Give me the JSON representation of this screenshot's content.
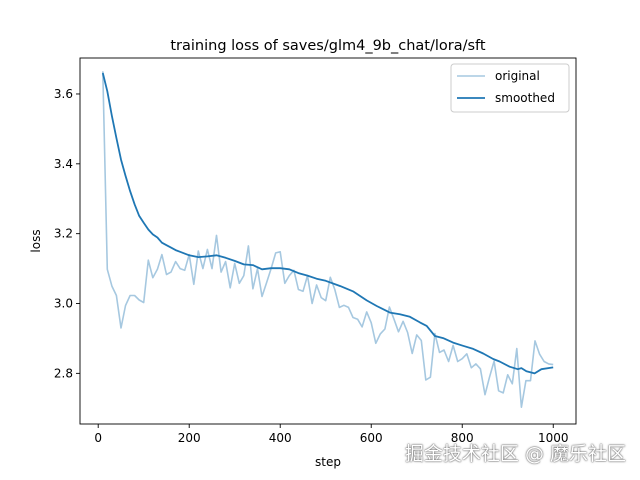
{
  "chart_data": {
    "type": "line",
    "title": "training loss of saves/glm4_9b_chat/lora/sft",
    "xlabel": "step",
    "ylabel": "loss",
    "xlim": [
      -40,
      1050
    ],
    "ylim": [
      2.655,
      3.703
    ],
    "xticks": [
      0,
      200,
      400,
      600,
      800,
      1000
    ],
    "xtick_labels": [
      "0",
      "200",
      "400",
      "600",
      "800",
      "1000"
    ],
    "yticks": [
      2.8,
      3.0,
      3.2,
      3.4,
      3.6
    ],
    "ytick_labels": [
      "2.8",
      "3.0",
      "3.2",
      "3.4",
      "3.6"
    ],
    "grid": false,
    "legend_position": "top-right",
    "series": [
      {
        "name": "original",
        "color": "#a6c8e0",
        "x": [
          10,
          20,
          30,
          40,
          50,
          60,
          70,
          80,
          90,
          100,
          110,
          120,
          130,
          140,
          150,
          160,
          170,
          180,
          190,
          200,
          210,
          220,
          230,
          240,
          250,
          260,
          270,
          280,
          290,
          300,
          310,
          320,
          330,
          340,
          350,
          360,
          370,
          380,
          390,
          400,
          410,
          420,
          430,
          440,
          450,
          460,
          470,
          480,
          490,
          500,
          510,
          520,
          530,
          540,
          550,
          560,
          570,
          580,
          590,
          600,
          610,
          620,
          630,
          640,
          650,
          660,
          670,
          680,
          690,
          700,
          710,
          720,
          730,
          740,
          750,
          760,
          770,
          780,
          790,
          800,
          810,
          820,
          830,
          840,
          850,
          860,
          870,
          880,
          890,
          900,
          910,
          920,
          930,
          940,
          950,
          960,
          970,
          980,
          990,
          1000
        ],
        "y": [
          3.665,
          3.098,
          3.05,
          3.023,
          2.93,
          2.994,
          3.023,
          3.023,
          3.01,
          3.003,
          3.124,
          3.074,
          3.098,
          3.14,
          3.083,
          3.09,
          3.12,
          3.1,
          3.095,
          3.14,
          3.055,
          3.15,
          3.1,
          3.155,
          3.1,
          3.195,
          3.09,
          3.12,
          3.045,
          3.115,
          3.058,
          3.08,
          3.165,
          3.042,
          3.1,
          3.02,
          3.06,
          3.1,
          3.145,
          3.148,
          3.058,
          3.08,
          3.095,
          3.04,
          3.035,
          3.08,
          3.0,
          3.053,
          3.017,
          3.008,
          3.075,
          3.04,
          2.989,
          2.995,
          2.989,
          2.96,
          2.955,
          2.933,
          2.976,
          2.945,
          2.886,
          2.913,
          2.927,
          2.99,
          2.955,
          2.919,
          2.949,
          2.917,
          2.857,
          2.91,
          2.894,
          2.781,
          2.789,
          2.914,
          2.86,
          2.867,
          2.834,
          2.88,
          2.834,
          2.842,
          2.856,
          2.816,
          2.827,
          2.813,
          2.739,
          2.789,
          2.835,
          2.75,
          2.744,
          2.796,
          2.77,
          2.871,
          2.703,
          2.779,
          2.779,
          2.893,
          2.855,
          2.834,
          2.827,
          2.825
        ]
      },
      {
        "name": "smoothed",
        "color": "#1f77b4",
        "x": [
          10,
          20,
          30,
          40,
          50,
          60,
          70,
          80,
          90,
          100,
          110,
          120,
          130,
          140,
          150,
          160,
          170,
          180,
          200,
          220,
          240,
          260,
          280,
          300,
          320,
          340,
          360,
          380,
          400,
          420,
          440,
          460,
          480,
          500,
          532,
          561,
          590,
          612,
          641,
          663,
          685,
          707,
          722,
          740,
          758,
          780,
          802,
          824,
          846,
          868,
          882,
          904,
          922,
          930,
          941,
          959,
          974,
          1000
        ],
        "y": [
          3.66,
          3.608,
          3.537,
          3.474,
          3.412,
          3.366,
          3.322,
          3.284,
          3.251,
          3.231,
          3.212,
          3.198,
          3.189,
          3.174,
          3.167,
          3.16,
          3.153,
          3.148,
          3.138,
          3.133,
          3.135,
          3.138,
          3.131,
          3.122,
          3.112,
          3.11,
          3.098,
          3.101,
          3.101,
          3.098,
          3.087,
          3.08,
          3.071,
          3.065,
          3.05,
          3.034,
          3.009,
          2.993,
          2.974,
          2.969,
          2.962,
          2.946,
          2.936,
          2.907,
          2.901,
          2.888,
          2.879,
          2.87,
          2.857,
          2.841,
          2.834,
          2.819,
          2.812,
          2.815,
          2.806,
          2.8,
          2.812,
          2.817
        ]
      }
    ]
  },
  "watermark": "掘金技术社区 @ 魔乐社区"
}
